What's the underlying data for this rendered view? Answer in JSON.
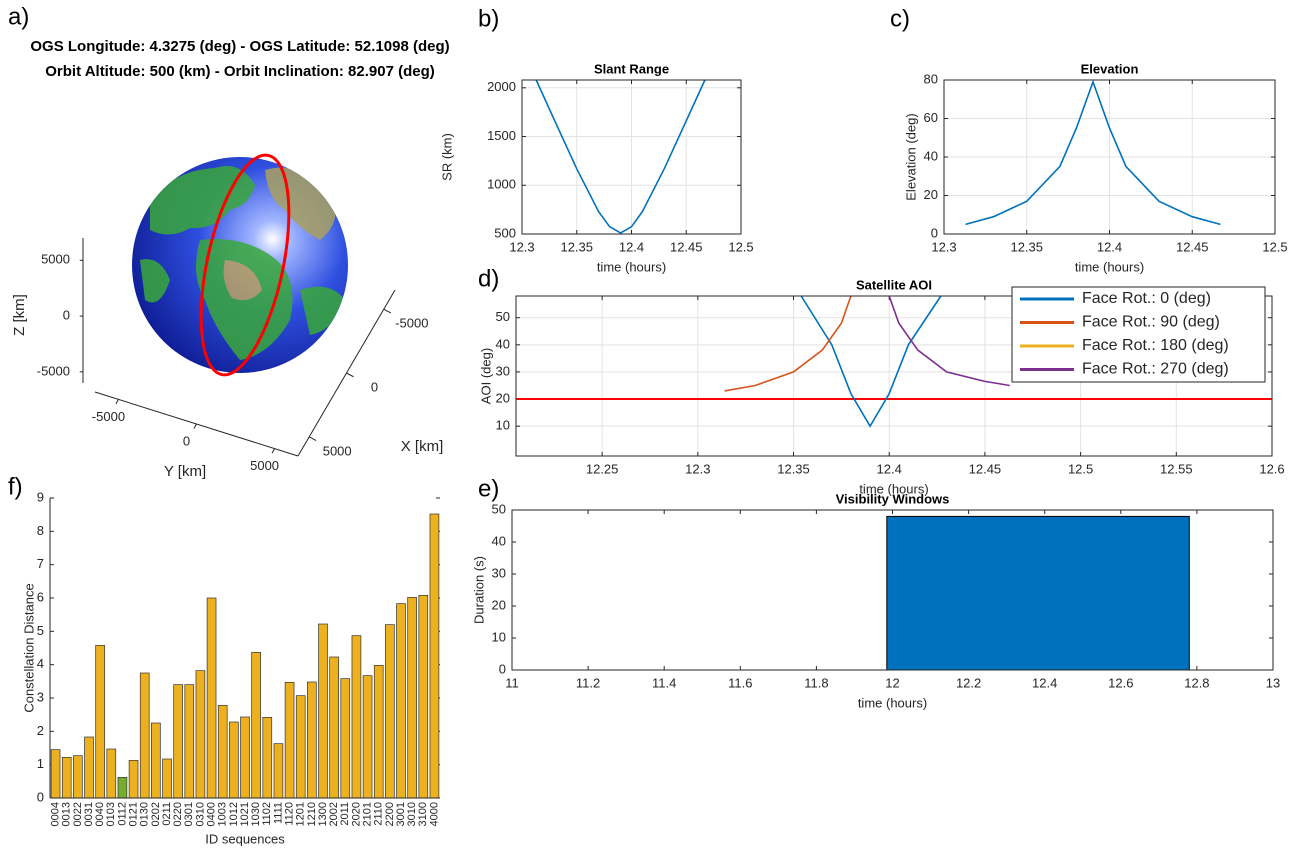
{
  "chart_data": [
    {
      "type": "globe3d",
      "panel_label": "a)",
      "title": [
        "OGS Longitude: 4.3275 (deg) - OGS Latitude: 52.1098 (deg)",
        "Orbit Altitude: 500 (km) - Orbit Inclination: 82.907 (deg)"
      ],
      "xlabel": "X [km]",
      "ylabel": "Y [km]",
      "zlabel": "Z [km]",
      "xlim": [
        -6500,
        6500
      ],
      "xticks": [
        -5000,
        0,
        5000
      ],
      "ylim": [
        -6500,
        6500
      ],
      "yticks": [
        -5000,
        0,
        5000
      ],
      "zlim": [
        -6000,
        7000
      ],
      "zticks": [
        -5000,
        0,
        5000
      ]
    },
    {
      "type": "line",
      "panel_label": "b)",
      "title": "Slant Range",
      "xlabel": "time (hours)",
      "ylabel": "SR (km)",
      "x": [
        12.313,
        12.33,
        12.35,
        12.37,
        12.38,
        12.39,
        12.4,
        12.41,
        12.43,
        12.45,
        12.467
      ],
      "values": [
        2080,
        1660,
        1170,
        730,
        575,
        510,
        575,
        730,
        1170,
        1660,
        2080
      ],
      "color": "#0072bd",
      "xlim": [
        12.3,
        12.5
      ],
      "xticks": [
        12.3,
        12.35,
        12.4,
        12.45,
        12.5
      ],
      "ylim": [
        500,
        2080
      ],
      "yticks": [
        500,
        1000,
        1500,
        2000
      ],
      "grid": true
    },
    {
      "type": "line",
      "panel_label": "c)",
      "title": "Elevation",
      "xlabel": "time (hours)",
      "ylabel": "Elevation (deg)",
      "x": [
        12.313,
        12.33,
        12.35,
        12.37,
        12.38,
        12.39,
        12.4,
        12.41,
        12.43,
        12.45,
        12.467
      ],
      "values": [
        5,
        9,
        17,
        35,
        55,
        79,
        55,
        35,
        17,
        9,
        5
      ],
      "color": "#0072bd",
      "xlim": [
        12.3,
        12.5
      ],
      "xticks": [
        12.3,
        12.35,
        12.4,
        12.45,
        12.5
      ],
      "ylim": [
        0,
        80
      ],
      "yticks": [
        0,
        20,
        40,
        60,
        80
      ],
      "grid": true
    },
    {
      "type": "line",
      "panel_label": "d)",
      "title": "Satellite AOI",
      "xlabel": "time (hours)",
      "ylabel": "AOI (deg)",
      "series": [
        {
          "name": "Face Rot.: 0 (deg)",
          "color": "#0072bd",
          "x": [
            12.354,
            12.37,
            12.38,
            12.39,
            12.4,
            12.41,
            12.427
          ],
          "values": [
            58,
            40,
            22,
            10,
            22,
            40,
            58
          ]
        },
        {
          "name": "Face Rot.: 90 (deg)",
          "color": "#d95319",
          "x": [
            12.314,
            12.33,
            12.35,
            12.365,
            12.375,
            12.38
          ],
          "values": [
            23,
            25,
            30,
            38,
            48,
            58
          ]
        },
        {
          "name": "Face Rot.: 180 (deg)",
          "color": "#edb120",
          "x": [],
          "values": []
        },
        {
          "name": "Face Rot.: 270 (deg)",
          "color": "#7e2f8e",
          "x": [
            12.4,
            12.405,
            12.415,
            12.43,
            12.45,
            12.463
          ],
          "values": [
            58,
            48,
            38,
            30,
            26.5,
            25
          ]
        }
      ],
      "threshold": {
        "value": 20,
        "color": "#ff0000"
      },
      "legend": "upper right",
      "xlim": [
        12.205,
        12.6
      ],
      "xticks": [
        12.25,
        12.3,
        12.35,
        12.4,
        12.45,
        12.5,
        12.55,
        12.6
      ],
      "ylim": [
        -1,
        58
      ],
      "yticks": [
        10,
        20,
        30,
        40,
        50
      ],
      "grid": true
    },
    {
      "type": "interval",
      "panel_label": "e)",
      "title": "Visibility Windows",
      "xlabel": "time (hours)",
      "ylabel": "Duration (s)",
      "bars": [
        {
          "start": 11.985,
          "end": 12.78,
          "value": 48
        }
      ],
      "color": "#0072bd",
      "xlim": [
        11,
        13
      ],
      "xticks": [
        11,
        11.2,
        11.4,
        11.6,
        11.8,
        12,
        12.2,
        12.4,
        12.6,
        12.8,
        13
      ],
      "ylim": [
        0,
        50
      ],
      "yticks": [
        0,
        10,
        20,
        30,
        40,
        50
      ],
      "grid": false
    },
    {
      "type": "bar",
      "panel_label": "f)",
      "xlabel": "ID sequences",
      "ylabel": "Constellation Distance",
      "categories": [
        "0004",
        "0013",
        "0022",
        "0031",
        "0040",
        "0103",
        "0112",
        "0121",
        "0130",
        "0202",
        "0211",
        "0220",
        "0301",
        "0310",
        "0400",
        "1003",
        "1012",
        "1021",
        "1030",
        "1102",
        "1111",
        "1120",
        "1201",
        "1210",
        "1300",
        "2002",
        "2011",
        "2020",
        "2101",
        "2110",
        "2200",
        "3001",
        "3010",
        "3100",
        "4000"
      ],
      "values": [
        1.45,
        1.22,
        1.27,
        1.83,
        4.58,
        1.47,
        0.62,
        1.13,
        3.75,
        2.25,
        1.17,
        3.4,
        3.4,
        3.82,
        6.0,
        2.78,
        2.28,
        2.43,
        4.37,
        2.42,
        1.63,
        3.47,
        3.07,
        3.48,
        5.22,
        4.23,
        3.58,
        4.87,
        3.67,
        3.98,
        5.2,
        5.83,
        6.02,
        6.08,
        8.52
      ],
      "colors": [
        "#edb120",
        "#edb120",
        "#edb120",
        "#edb120",
        "#edb120",
        "#edb120",
        "#77ac30",
        "#edb120",
        "#edb120",
        "#edb120",
        "#edb120",
        "#edb120",
        "#edb120",
        "#edb120",
        "#edb120",
        "#edb120",
        "#edb120",
        "#edb120",
        "#edb120",
        "#edb120",
        "#edb120",
        "#edb120",
        "#edb120",
        "#edb120",
        "#edb120",
        "#edb120",
        "#edb120",
        "#edb120",
        "#edb120",
        "#edb120",
        "#edb120",
        "#edb120",
        "#edb120",
        "#edb120",
        "#edb120"
      ],
      "ylim": [
        0,
        9
      ],
      "yticks": [
        0,
        1,
        2,
        3,
        4,
        5,
        6,
        7,
        8,
        9
      ],
      "grid": false
    }
  ]
}
